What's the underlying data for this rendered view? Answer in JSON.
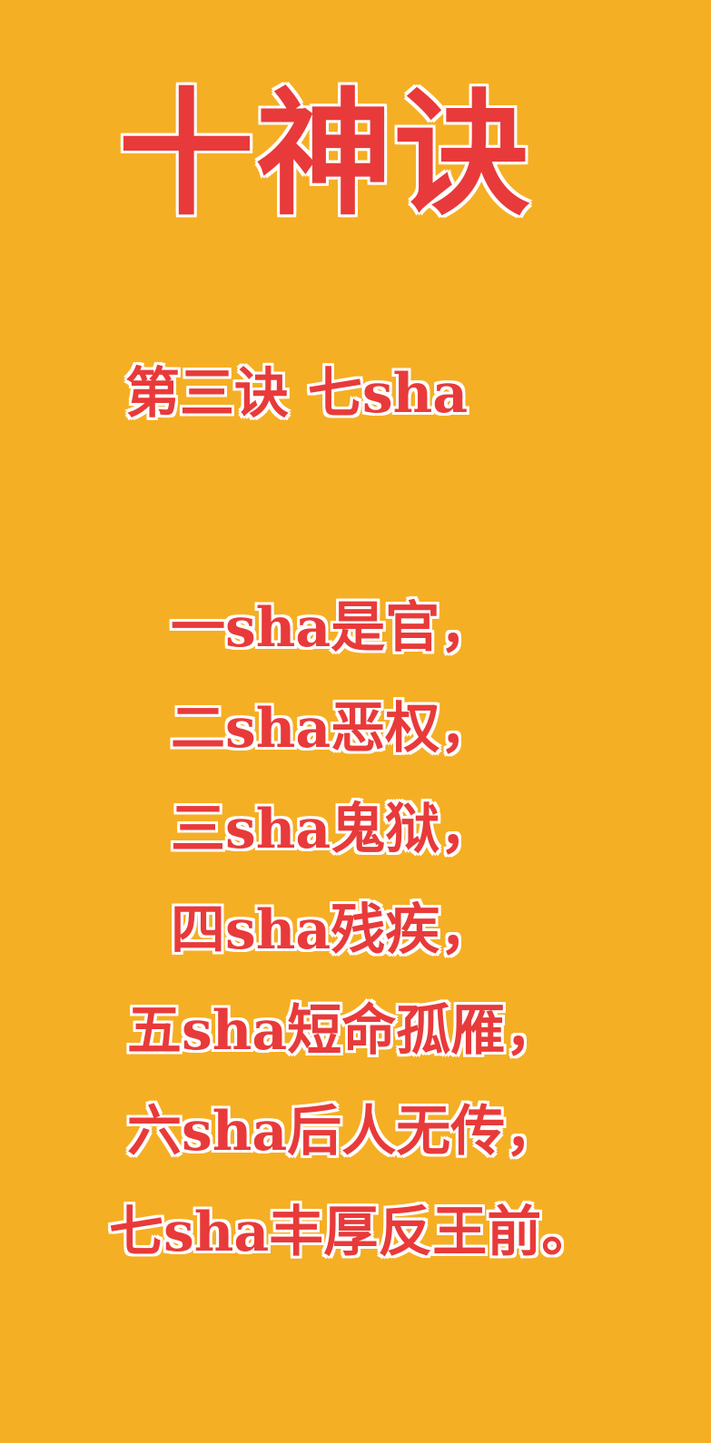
{
  "title": "十神诀",
  "subtitle": "第三诀  七sha",
  "verses": [
    "一sha是官，",
    "二sha恶权，",
    "三sha鬼狱，",
    "四sha残疾，",
    "五sha短命孤雁，",
    "六sha后人无传，",
    "七sha丰厚反王前。"
  ],
  "colors": {
    "background": "#F5AF24",
    "text": "#E83A3A",
    "outline": "#FFFFFF"
  }
}
